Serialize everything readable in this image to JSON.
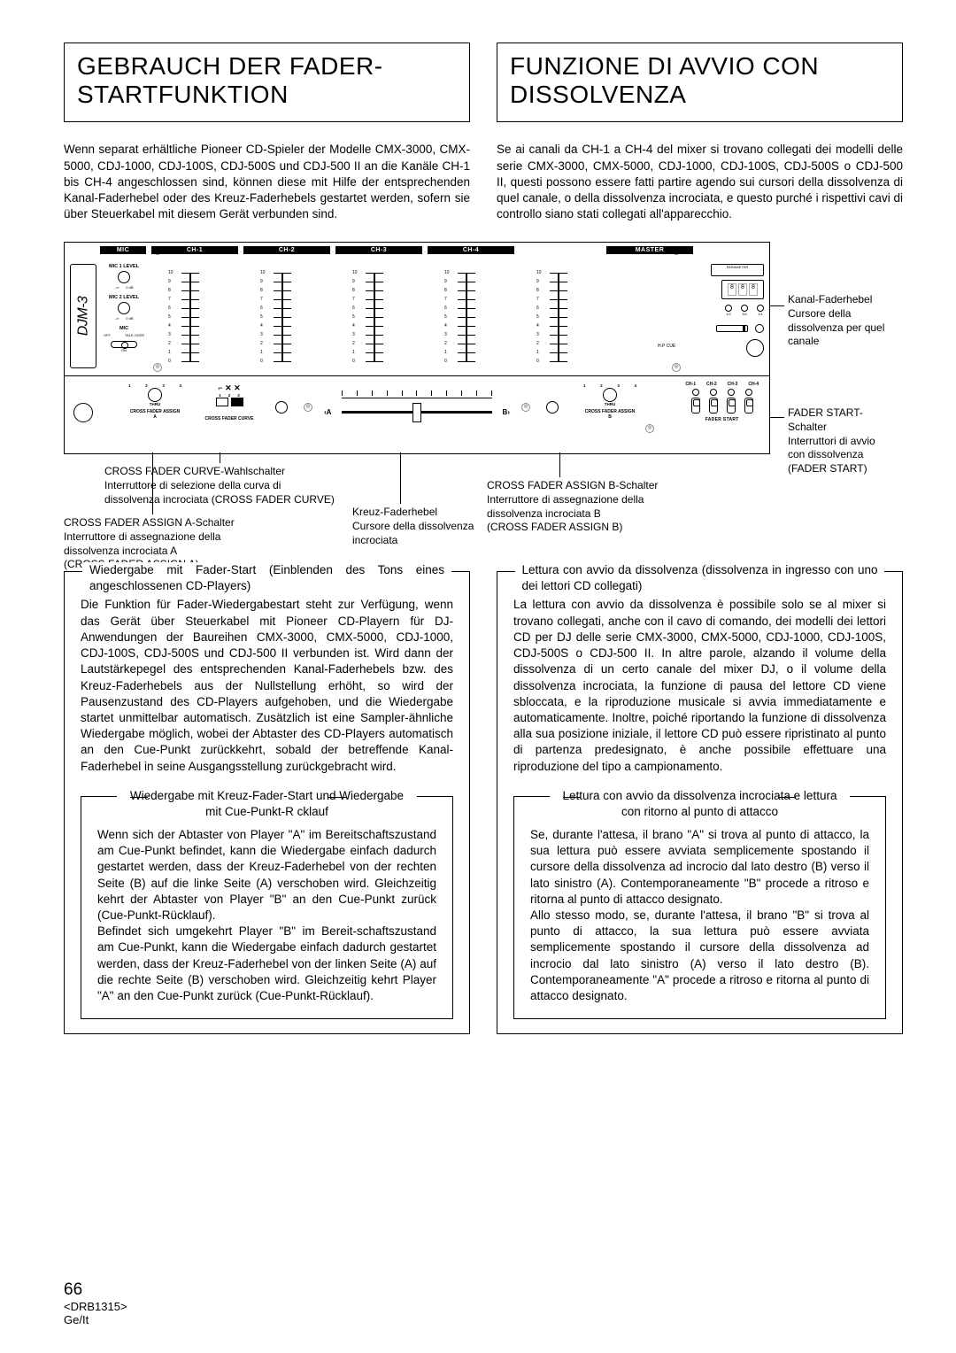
{
  "left": {
    "title": "GEBRAUCH DER FADER-STARTFUNKTION",
    "intro": "Wenn separat erhältliche Pioneer CD-Spieler der Modelle CMX-3000, CMX-5000, CDJ-1000, CDJ-100S, CDJ-500S und CDJ-500 II an die Kanäle CH-1 bis CH-4 angeschlossen sind, können diese mit Hilfe der entsprechenden Kanal-Faderhebel oder des Kreuz-Faderhebels gestartet werden, sofern sie über Steuerkabel mit diesem Gerät verbunden sind."
  },
  "right": {
    "title": "FUNZIONE DI AVVIO CON DISSOLVENZA",
    "intro": "Se ai canali da CH-1 a CH-4 del mixer si trovano collegati dei modelli delle serie CMX-3000, CMX-5000, CDJ-1000, CDJ-100S, CDJ-500S o CDJ-500 II, questi possono essere fatti partire agendo sui cursori della dissolvenza di quel canale, o della dissolvenza incrociata, e questo purché i rispettivi cavi di controllo siano stati collegati all'apparecchio."
  },
  "diagram": {
    "logo": "DJM-3",
    "top_labels": [
      "MIC",
      "CH-1",
      "CH-2",
      "CH-3",
      "CH-4",
      "MASTER"
    ],
    "mic1": "MIC 1 LEVEL",
    "mic2": "MIC 2 LEVEL",
    "mic": "MIC",
    "off": "OFF",
    "talk": "TALK OVER",
    "on": "ON",
    "fader_nums": [
      "10",
      "9",
      "8",
      "7",
      "6",
      "5",
      "4",
      "3",
      "2",
      "1",
      "0"
    ],
    "parameter": "PARAMETER",
    "hp": "H.P CUE",
    "thru": "THRU",
    "cfa": "CROSS FADER ASSIGN A",
    "cfc": "CROSS FADER CURVE",
    "cfb": "CROSS FADER ASSIGN B",
    "a": "A",
    "b": "B",
    "fstart_ch": [
      "CH-1",
      "CH-2",
      "CH-3",
      "CH-4"
    ],
    "fstart": "FADER START"
  },
  "callouts": {
    "side_r1": "Kanal-Faderhebel\nCursore della\ndissolvenza per quel\ncanale",
    "side_r2": "FADER START-\nSchalter\nInterruttori di avvio\ncon dissolvenza\n(FADER START)",
    "c1": "CROSS FADER CURVE-Wahlschalter\nInterruttore di selezione della curva di\ndissolvenza incrociata (CROSS FADER CURVE)",
    "c2": "CROSS FADER ASSIGN A-Schalter\nInterruttore di assegnazione della\ndissolvenza incrociata A\n(CROSS FADER ASSIGN A)",
    "c3": "Kreuz-Faderhebel\nCursore della dissolvenza\nincrociata",
    "c4": "CROSS FADER ASSIGN B-Schalter\nInterruttore di assegnazione della\ndissolvenza incrociata B\n(CROSS FADER ASSIGN B)"
  },
  "leftsec": {
    "title": "Wiedergabe mit Fader-Start (Einblenden des Tons eines angeschlossenen CD-Players)",
    "body": "Die Funktion für Fader-Wiedergabestart steht zur Verfügung, wenn das Gerät über Steuerkabel mit Pioneer CD-Playern für DJ-Anwendungen der Baureihen CMX-3000, CMX-5000, CDJ-1000, CDJ-100S, CDJ-500S und CDJ-500 II verbunden ist. Wird dann der Lautstärkepegel des entsprechenden Kanal-Faderhebels bzw. des Kreuz-Faderhebels aus der Nullstellung erhöht, so wird der Pausenzustand des CD-Players aufgehoben, und die Wiedergabe startet unmittelbar automatisch. Zusätzlich ist eine Sampler-ähnliche Wiedergabe möglich, wobei der Abtaster des CD-Players automatisch an den Cue-Punkt zurückkehrt, sobald der betreffende Kanal-Faderhebel in seine Ausgangsstellung zurückgebracht wird.",
    "inner_title": "Wiedergabe mit Kreuz-Fader-Start und Wiedergabe mit Cue-Punkt-R    cklauf",
    "inner_body": "Wenn sich der Abtaster von Player \"A\" im Bereitschaftszustand am Cue-Punkt befindet, kann die Wiedergabe einfach dadurch gestartet werden, dass der Kreuz-Faderhebel von der rechten Seite (B) auf die linke Seite (A) verschoben wird. Gleichzeitig kehrt der Abtaster von Player \"B\" an den Cue-Punkt zurück (Cue-Punkt-Rücklauf).\nBefindet sich umgekehrt Player \"B\" im Bereit-schaftszustand am Cue-Punkt, kann die Wiedergabe einfach dadurch gestartet werden, dass der Kreuz-Faderhebel von der linken Seite (A) auf die rechte Seite (B) verschoben wird. Gleichzeitig kehrt Player \"A\" an den Cue-Punkt zurück (Cue-Punkt-Rücklauf)."
  },
  "rightsec": {
    "title": "Lettura con avvio da dissolvenza (dissolvenza in ingresso con uno dei lettori CD collegati)",
    "body": "La lettura con avvio da dissolvenza è possibile solo se al mixer si trovano collegati, anche con il cavo di comando, dei modelli dei lettori CD per DJ delle serie CMX-3000, CMX-5000, CDJ-1000, CDJ-100S, CDJ-500S o CDJ-500 II. In altre parole, alzando il volume della dissolvenza di un certo canale del mixer DJ, o il volume della dissolvenza incrociata, la funzione di pausa del lettore CD viene sbloccata, e la riproduzione musicale si avvia immediatamente e automaticamente. Inoltre, poiché riportando la funzione di dissolvenza alla sua posizione iniziale, il lettore CD può essere ripristinato al punto di partenza predesignato, è anche possibile effettuare una riproduzione del tipo a campionamento.",
    "inner_title": "Lettura con avvio da dissolvenza incrociata e lettura con ritorno al punto di attacco",
    "inner_body": "Se, durante l'attesa, il brano \"A\" si trova al punto di attacco, la sua lettura può essere avviata semplicemente spostando il cursore della dissolvenza ad incrocio dal lato destro (B) verso il lato sinistro (A). Contemporaneamente \"B\" procede a ritroso e ritorna al punto di attacco designato.\nAllo stesso modo, se, durante l'attesa, il brano \"B\" si trova al punto di attacco, la sua lettura può essere avviata semplicemente spostando il cursore della dissolvenza ad incrocio dal lato sinistro (A) verso il lato destro (B). Contemporaneamente \"A\" procede a ritroso e ritorna al punto di attacco designato."
  },
  "footer": {
    "page": "66",
    "code": "<DRB1315>",
    "lang": "Ge/It"
  }
}
